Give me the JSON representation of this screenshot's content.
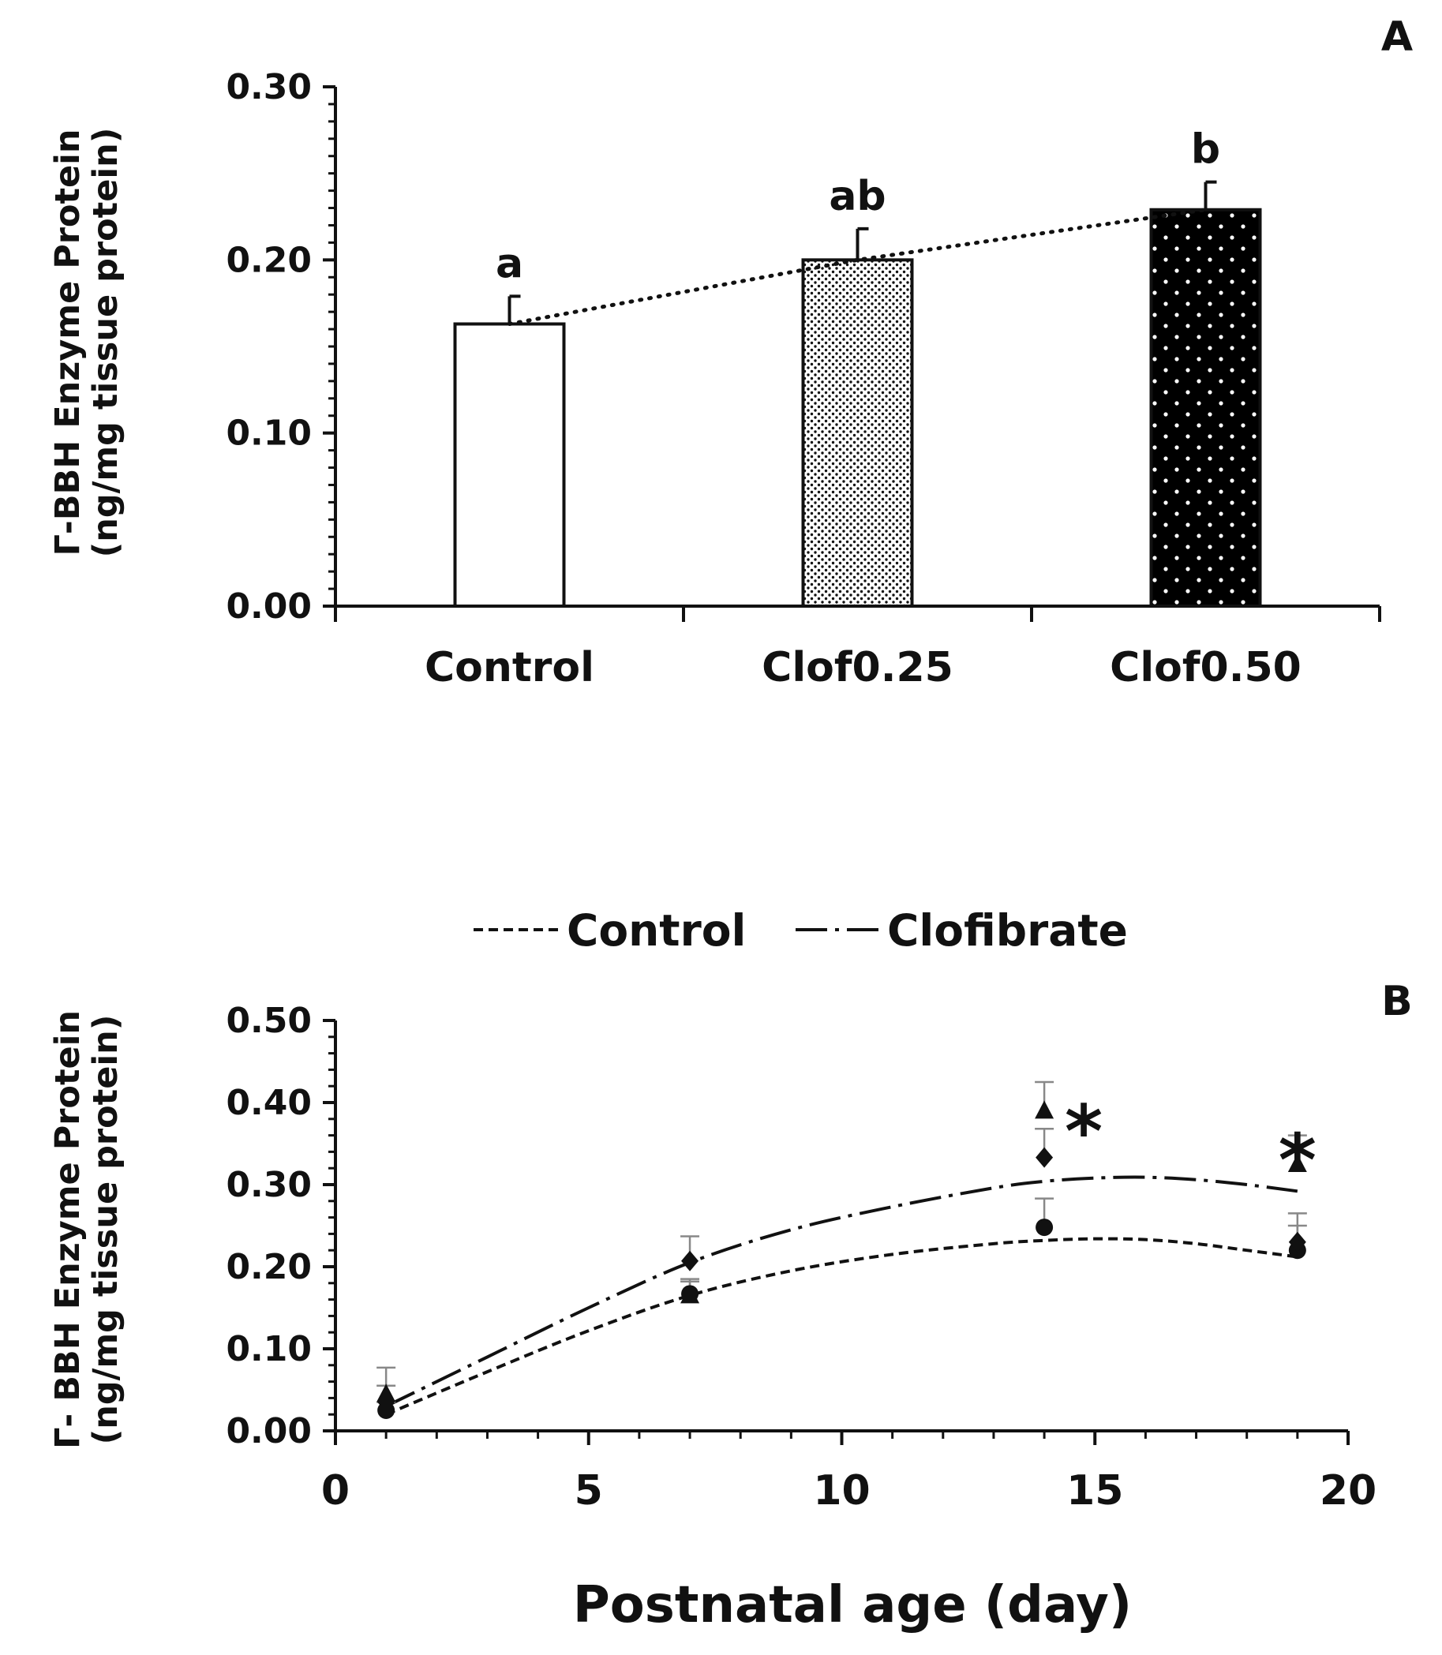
{
  "chart_data": [
    {
      "panel": "A",
      "type": "bar",
      "categories": [
        "Control",
        "Clof0.25",
        "Clof0.50"
      ],
      "values": [
        0.163,
        0.2,
        0.229
      ],
      "errors": [
        0.016,
        0.018,
        0.016
      ],
      "significance_letters": [
        "a",
        "ab",
        "b"
      ],
      "fills": [
        "white",
        "dots-fine",
        "dots-on-black"
      ],
      "trendline": "dotted",
      "ylabel_line1": "Γ-BBH Enzyme Protein",
      "ylabel_line2": "(ng/mg tissue protein)",
      "yticks": [
        "0.00",
        "0.10",
        "0.20",
        "0.30"
      ],
      "ylim": [
        0,
        0.3
      ]
    },
    {
      "panel": "B",
      "type": "scatter",
      "xlabel": "Postnatal age (day)",
      "ylabel_line1": "Γ- BBH Enzyme Protein",
      "ylabel_line2": "(ng/mg tissue protein)",
      "xlim": [
        0,
        20
      ],
      "ylim": [
        0,
        0.5
      ],
      "xticks": [
        "0",
        "5",
        "10",
        "15",
        "20"
      ],
      "yticks": [
        "0.00",
        "0.10",
        "0.20",
        "0.30",
        "0.40",
        "0.50"
      ],
      "legend": [
        "Control",
        "Clofibrate"
      ],
      "series": [
        {
          "name": "Control (circle)",
          "marker": "circle",
          "x": [
            1,
            7,
            14,
            19
          ],
          "y": [
            0.025,
            0.167,
            0.248,
            0.22
          ],
          "err": [
            0.01,
            0.015,
            0.035,
            0.03
          ]
        },
        {
          "name": "Triangle",
          "marker": "triangle",
          "x": [
            1,
            7,
            14,
            19
          ],
          "y": [
            0.045,
            0.165,
            0.39,
            0.325
          ],
          "err": [
            0.032,
            0.02,
            0.035,
            0.035
          ]
        },
        {
          "name": "Diamond",
          "marker": "diamond",
          "x": [
            1,
            7,
            14,
            19
          ],
          "y": [
            0.035,
            0.207,
            0.333,
            0.23
          ],
          "err": [
            0.02,
            0.03,
            0.035,
            0.035
          ]
        }
      ],
      "trend_lines": [
        {
          "name": "Control",
          "style": "dashed",
          "x": [
            1,
            3,
            5,
            7,
            9,
            11,
            13,
            14,
            15,
            16,
            17,
            18,
            19
          ],
          "y": [
            0.02,
            0.072,
            0.122,
            0.165,
            0.195,
            0.215,
            0.228,
            0.232,
            0.234,
            0.233,
            0.228,
            0.22,
            0.212
          ]
        },
        {
          "name": "Clofibrate",
          "style": "dash-dot",
          "x": [
            1,
            3,
            5,
            7,
            9,
            11,
            13,
            14,
            15,
            16,
            17,
            18,
            19
          ],
          "y": [
            0.03,
            0.09,
            0.15,
            0.205,
            0.245,
            0.273,
            0.296,
            0.304,
            0.308,
            0.309,
            0.306,
            0.3,
            0.292
          ]
        }
      ],
      "annotations": [
        {
          "text": "*",
          "x": 14,
          "y": 0.39
        },
        {
          "text": "*",
          "x": 19,
          "y": 0.355
        }
      ]
    }
  ],
  "panel_labels": [
    "A",
    "B"
  ]
}
